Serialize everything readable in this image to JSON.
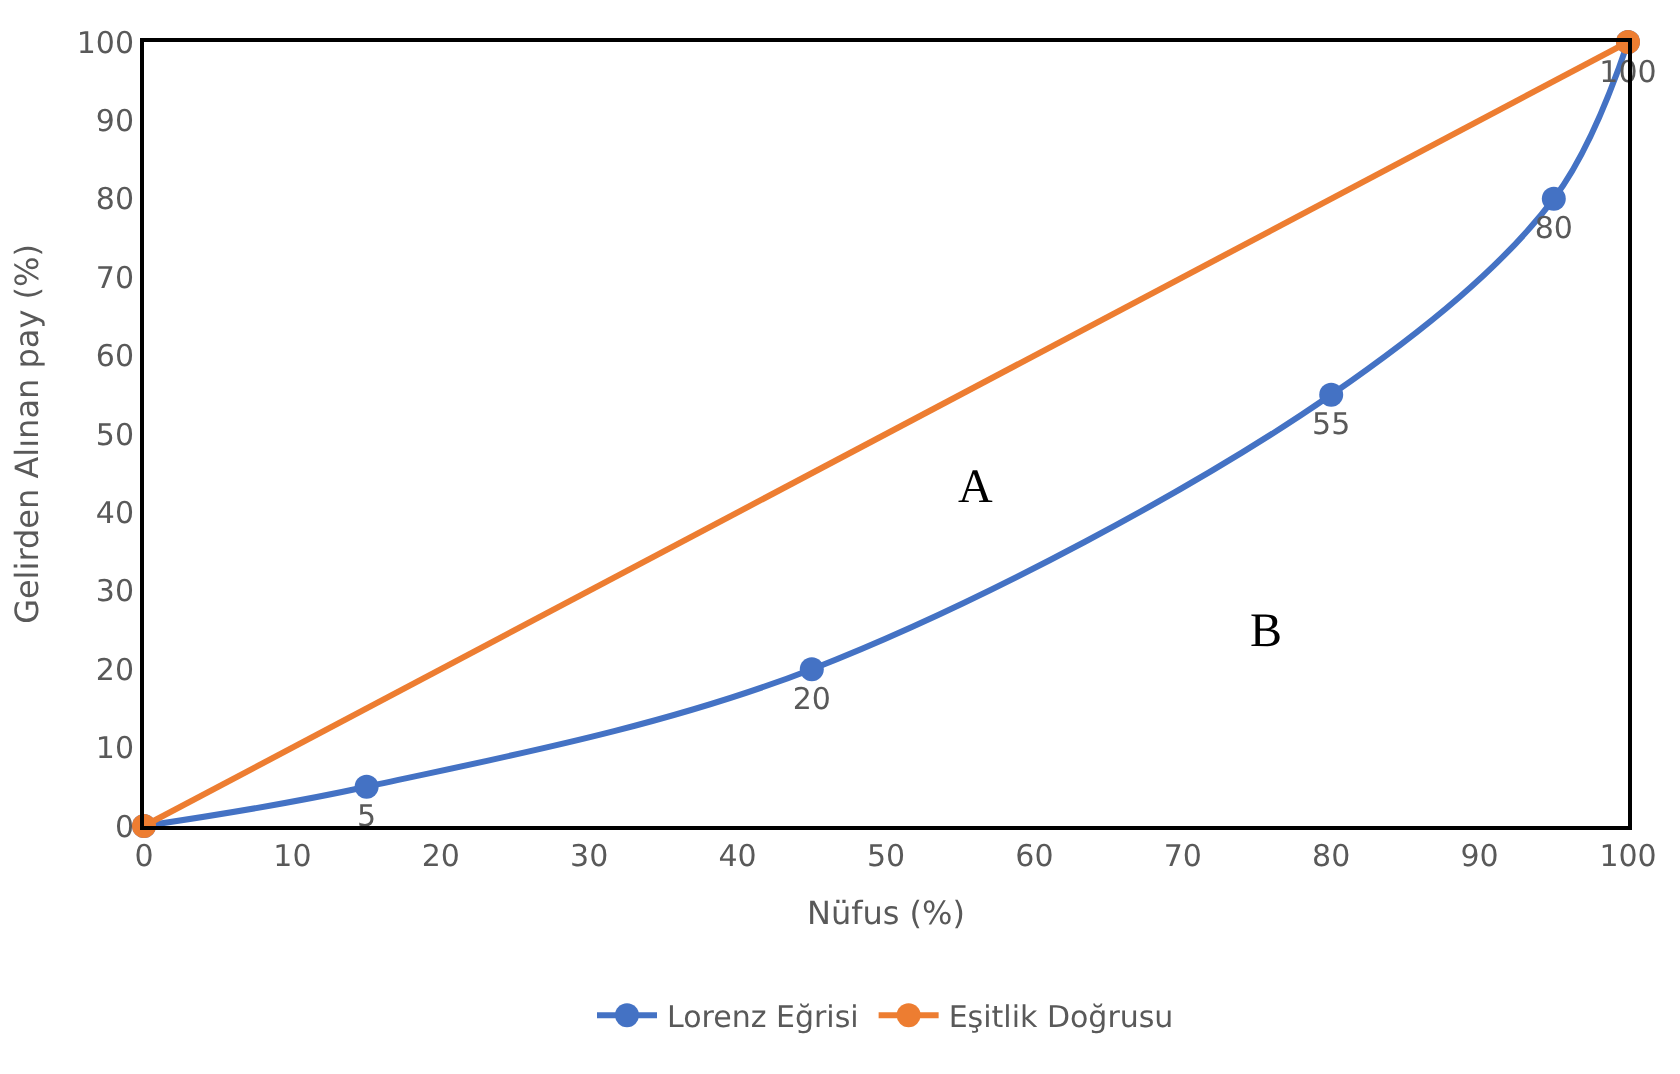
{
  "chart_data": {
    "type": "line",
    "xlabel": "Nüfus (%)",
    "ylabel": "Gelirden Alınan pay (%)",
    "xlim": [
      0,
      100
    ],
    "xticks": [
      0,
      10,
      20,
      30,
      40,
      50,
      60,
      70,
      80,
      90,
      100
    ],
    "ylim": [
      0,
      100
    ],
    "yticks": [
      0,
      10,
      20,
      30,
      40,
      50,
      60,
      70,
      80,
      90,
      100
    ],
    "grid": false,
    "legend": "bottom",
    "marker": "circle",
    "line_style": "solid",
    "series": [
      {
        "name": "Lorenz Eğrisi",
        "color": "#4472c4",
        "x": [
          0,
          15,
          45,
          80,
          95,
          100
        ],
        "values": [
          0,
          5,
          20,
          55,
          80,
          100
        ],
        "value_labels": [
          null,
          "5",
          "20",
          "55",
          "80",
          "100"
        ]
      },
      {
        "name": "Eşitlik Doğrusu",
        "color": "#ed7d31",
        "x": [
          0,
          100
        ],
        "values": [
          0,
          100
        ]
      }
    ],
    "annotations": [
      "A",
      "B"
    ]
  }
}
